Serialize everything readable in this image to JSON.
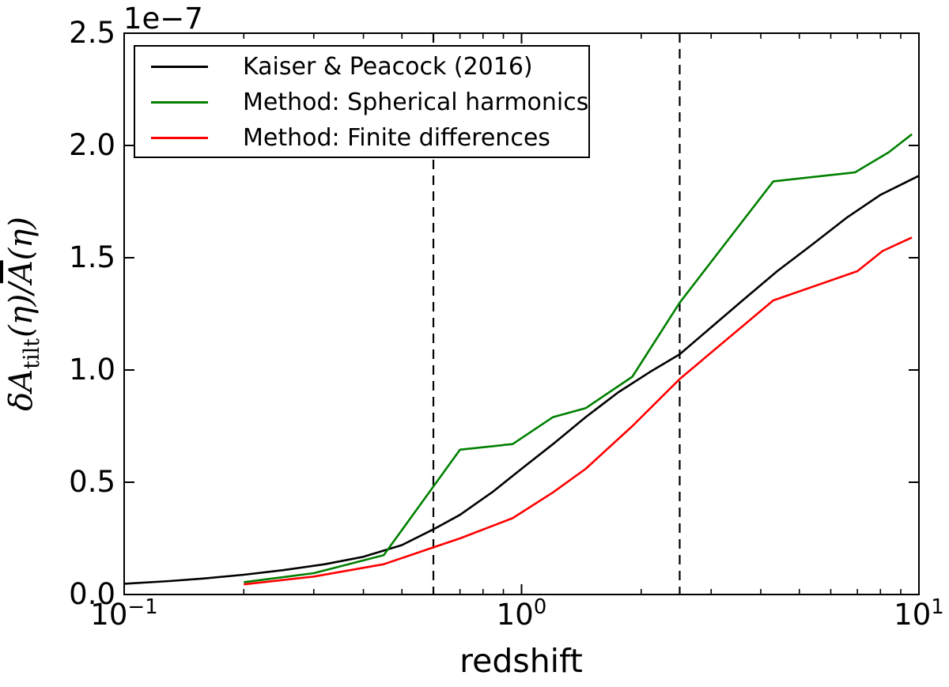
{
  "figure": {
    "background": "#ffffff"
  },
  "chart_data": {
    "type": "line",
    "title": "",
    "xlabel": "redshift",
    "ylabel": "δA_tilt(η)/Ā(η)",
    "ylabel_parts": {
      "prefix": "δA",
      "subscript": "tilt",
      "middle": "(η)/",
      "abar": "A",
      "suffix": "(η)"
    },
    "x_axis": {
      "scale": "log",
      "min": 0.1,
      "max": 10,
      "major_ticks": [
        0.1,
        1,
        10
      ],
      "minor_ticks": [
        0.2,
        0.3,
        0.4,
        0.5,
        0.6,
        0.7,
        0.8,
        0.9,
        2,
        3,
        4,
        5,
        6,
        7,
        8,
        9
      ],
      "tick_labels": [
        {
          "base": "10",
          "exp": "−1"
        },
        {
          "base": "10",
          "exp": "0"
        },
        {
          "base": "10",
          "exp": "1"
        }
      ]
    },
    "y_axis": {
      "min": 0,
      "max": 2.5,
      "major_ticks": [
        0.0,
        0.5,
        1.0,
        1.5,
        2.0,
        2.5
      ],
      "tick_labels": [
        "0.0",
        "0.5",
        "1.0",
        "1.5",
        "2.0",
        "2.5"
      ],
      "offset_label": "1e−7",
      "units_scale": "1e-7"
    },
    "legend": {
      "position": "upper left"
    },
    "series": [
      {
        "name": "Kaiser & Peacock (2016)",
        "color": "#000000",
        "style": "solid",
        "points": [
          [
            0.1,
            0.048
          ],
          [
            0.13,
            0.06
          ],
          [
            0.16,
            0.072
          ],
          [
            0.2,
            0.088
          ],
          [
            0.25,
            0.108
          ],
          [
            0.32,
            0.135
          ],
          [
            0.4,
            0.168
          ],
          [
            0.5,
            0.22
          ],
          [
            0.6,
            0.29
          ],
          [
            0.7,
            0.355
          ],
          [
            0.85,
            0.46
          ],
          [
            1.0,
            0.56
          ],
          [
            1.2,
            0.67
          ],
          [
            1.45,
            0.79
          ],
          [
            1.75,
            0.9
          ],
          [
            2.1,
            0.99
          ],
          [
            2.5,
            1.07
          ],
          [
            3.0,
            1.19
          ],
          [
            3.6,
            1.31
          ],
          [
            4.4,
            1.44
          ],
          [
            5.4,
            1.56
          ],
          [
            6.6,
            1.68
          ],
          [
            8.0,
            1.78
          ],
          [
            10.0,
            1.865
          ]
        ]
      },
      {
        "name": "Method: Spherical harmonics",
        "color": "#008000",
        "style": "solid",
        "points": [
          [
            0.2,
            0.055
          ],
          [
            0.3,
            0.095
          ],
          [
            0.45,
            0.175
          ],
          [
            0.7,
            0.645
          ],
          [
            0.95,
            0.67
          ],
          [
            1.2,
            0.79
          ],
          [
            1.45,
            0.83
          ],
          [
            1.9,
            0.97
          ],
          [
            2.5,
            1.3
          ],
          [
            4.3,
            1.84
          ],
          [
            6.9,
            1.88
          ],
          [
            8.4,
            1.97
          ],
          [
            9.6,
            2.05
          ]
        ]
      },
      {
        "name": "Method: Finite differences",
        "color": "#ff0000",
        "style": "solid",
        "points": [
          [
            0.2,
            0.045
          ],
          [
            0.3,
            0.08
          ],
          [
            0.45,
            0.135
          ],
          [
            0.6,
            0.21
          ],
          [
            0.7,
            0.25
          ],
          [
            0.95,
            0.34
          ],
          [
            1.2,
            0.455
          ],
          [
            1.45,
            0.56
          ],
          [
            1.9,
            0.75
          ],
          [
            2.5,
            0.96
          ],
          [
            4.3,
            1.31
          ],
          [
            7.0,
            1.44
          ],
          [
            8.1,
            1.53
          ],
          [
            9.6,
            1.59
          ]
        ]
      }
    ],
    "vlines": [
      {
        "x": 0.6,
        "style": "dashed",
        "color": "#000000"
      },
      {
        "x": 2.5,
        "style": "dashed",
        "color": "#000000"
      }
    ]
  }
}
